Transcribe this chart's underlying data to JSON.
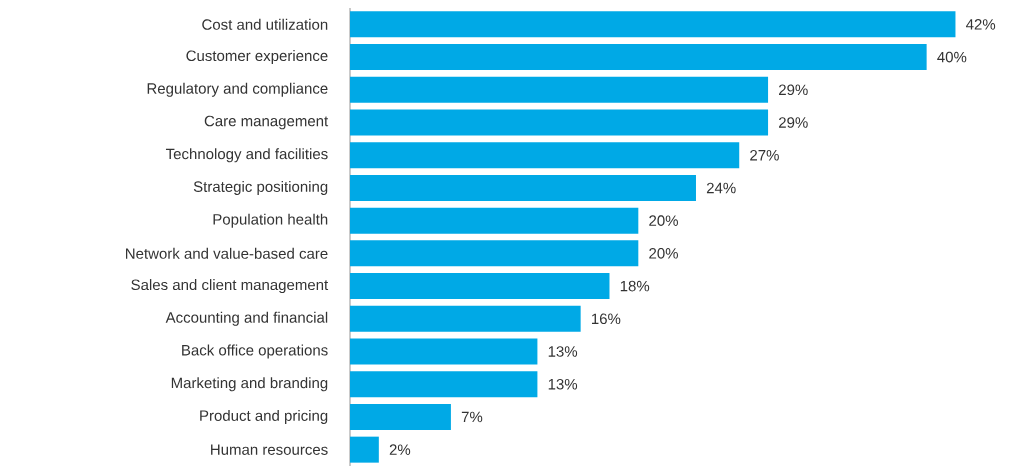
{
  "chart_data": {
    "type": "bar",
    "orientation": "horizontal",
    "categories": [
      "Cost and utilization",
      "Customer experience",
      "Regulatory and compliance",
      "Care management",
      "Technology and facilities",
      "Strategic positioning",
      "Population health",
      "Network and value-based care",
      "Sales and client management",
      "Accounting and financial",
      "Back office operations",
      "Marketing and branding",
      "Product and pricing",
      "Human resources"
    ],
    "values": [
      42,
      40,
      29,
      29,
      27,
      24,
      20,
      20,
      18,
      16,
      13,
      13,
      7,
      2
    ],
    "value_labels": [
      "42%",
      "40%",
      "29%",
      "29%",
      "27%",
      "24%",
      "20%",
      "20%",
      "18%",
      "16%",
      "13%",
      "13%",
      "7%",
      "2%"
    ],
    "color": "#00a9e6"
  }
}
